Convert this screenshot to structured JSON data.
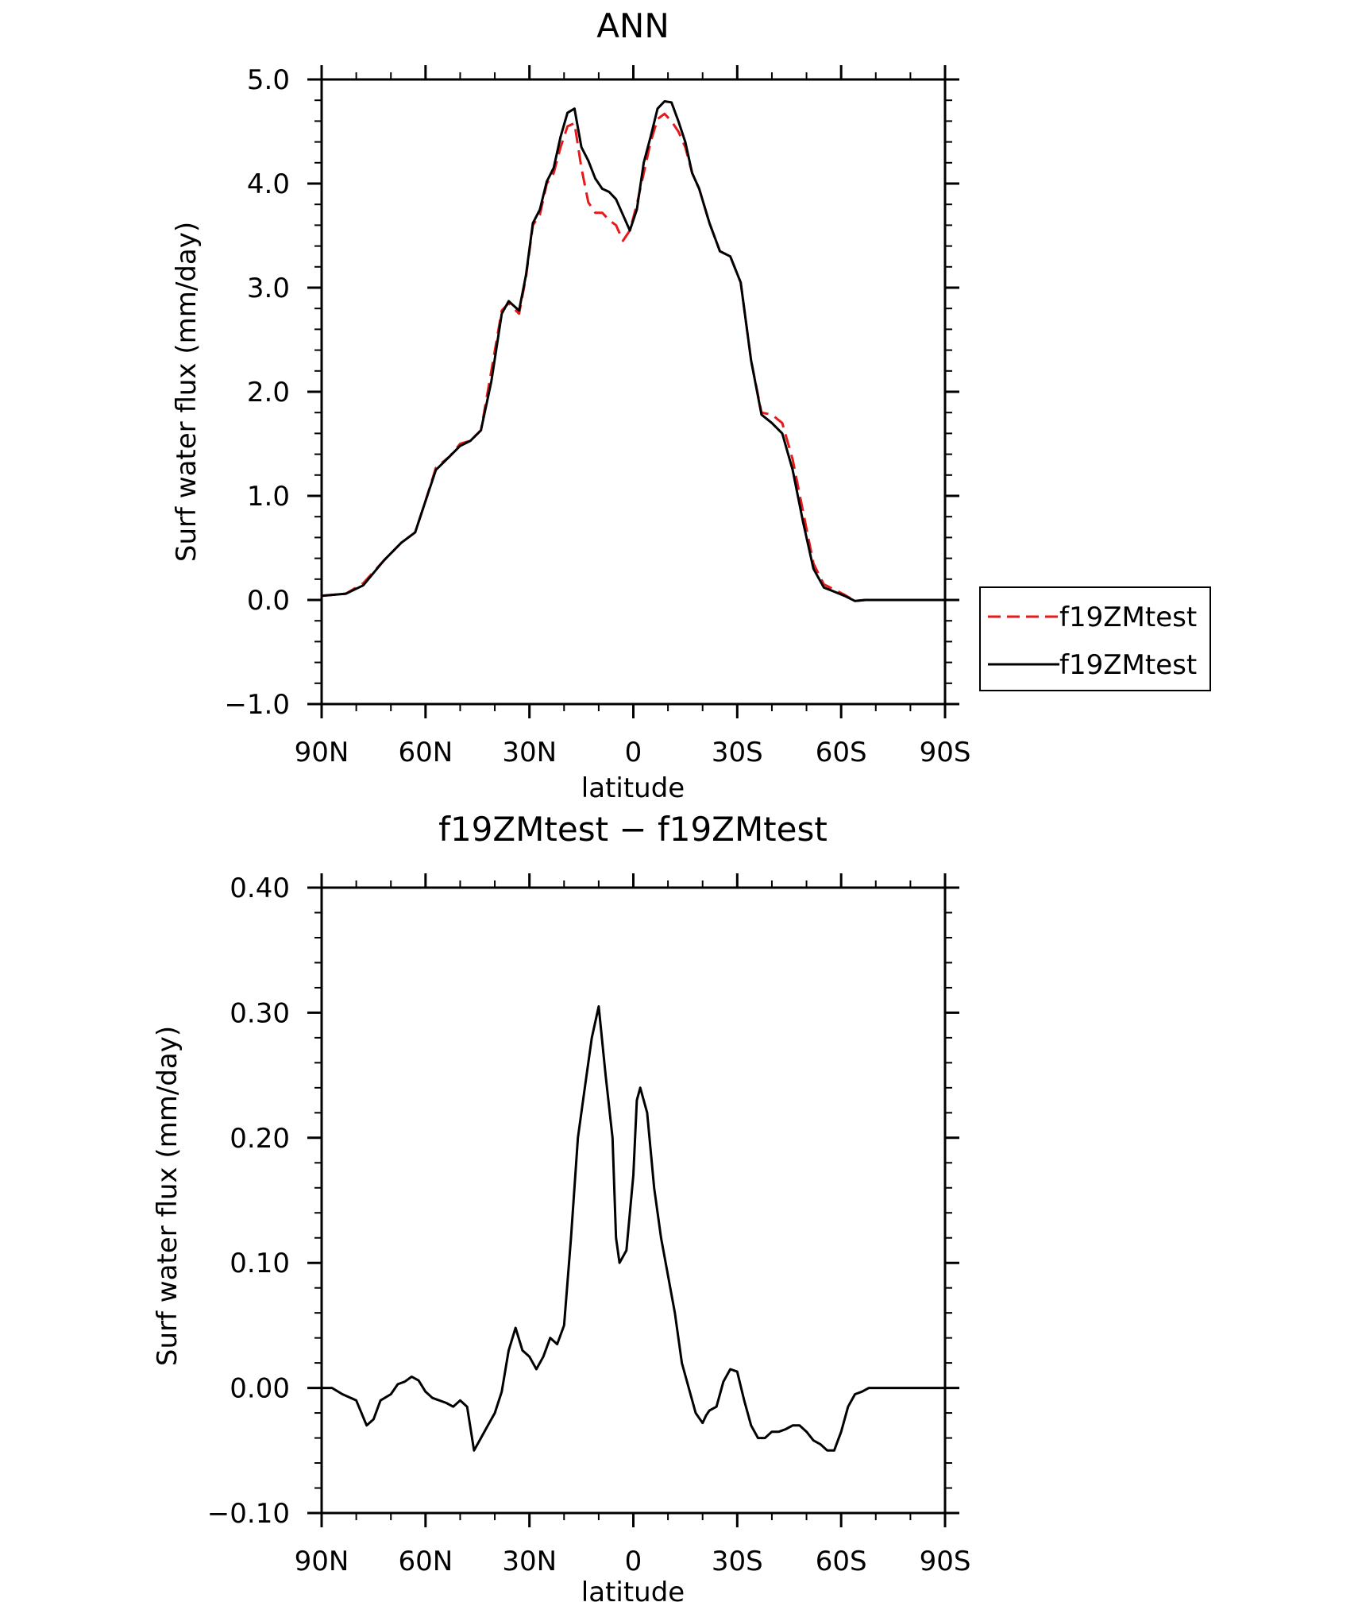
{
  "chart_data": [
    {
      "type": "line",
      "title": "ANN",
      "xlabel": "latitude",
      "ylabel": "Surf water flux (mm/day)",
      "xlim": [
        90,
        -90
      ],
      "ylim": [
        -1.0,
        5.0
      ],
      "yticks": [
        5.0,
        4.0,
        3.0,
        2.0,
        1.0,
        0.0,
        -1.0
      ],
      "ytick_labels": [
        "5.0",
        "4.0",
        "3.0",
        "2.0",
        "1.0",
        "0.0",
        "−1.0"
      ],
      "xticks": [
        90,
        60,
        30,
        0,
        -30,
        -60,
        -90
      ],
      "xtick_labels": [
        "90N",
        "60N",
        "30N",
        "0",
        "30S",
        "60S",
        "90S"
      ],
      "grid": false,
      "legend_position": "right",
      "series": [
        {
          "name": "f19ZMtest",
          "color": "#e8191a",
          "style": "dashed",
          "x": [
            90,
            83,
            78,
            72,
            67,
            63,
            60,
            57,
            53,
            50,
            47,
            44,
            41,
            38,
            36,
            33,
            31,
            29,
            27,
            25,
            23,
            21,
            19,
            17,
            15,
            13,
            11,
            9,
            7,
            5,
            3,
            1,
            -1,
            -3,
            -5,
            -7,
            -9,
            -11,
            -13,
            -15,
            -17,
            -19,
            -22,
            -25,
            -28,
            -31,
            -34,
            -37,
            -40,
            -43,
            -46,
            -49,
            -52,
            -55,
            -58,
            -61,
            -64,
            -67,
            -70,
            -73,
            -76,
            -79,
            -82,
            -85,
            -90
          ],
          "y": [
            0.04,
            0.06,
            0.16,
            0.38,
            0.55,
            0.65,
            0.95,
            1.27,
            1.38,
            1.5,
            1.53,
            1.63,
            2.2,
            2.78,
            2.85,
            2.75,
            3.1,
            3.6,
            3.7,
            4.0,
            4.1,
            4.35,
            4.55,
            4.58,
            4.15,
            3.82,
            3.72,
            3.72,
            3.65,
            3.6,
            3.45,
            3.55,
            3.8,
            4.1,
            4.4,
            4.62,
            4.67,
            4.6,
            4.5,
            4.35,
            4.1,
            3.95,
            3.62,
            3.35,
            3.3,
            3.05,
            2.3,
            1.8,
            1.78,
            1.7,
            1.35,
            0.85,
            0.35,
            0.15,
            0.1,
            0.05,
            -0.01,
            0.0,
            0.0,
            0.0,
            0.0,
            0.0,
            0.0,
            0.0,
            0.0
          ]
        },
        {
          "name": "f19ZMtest",
          "color": "#000000",
          "style": "solid",
          "x": [
            90,
            83,
            78,
            72,
            67,
            63,
            60,
            57,
            53,
            50,
            47,
            44,
            41,
            38,
            36,
            33,
            31,
            29,
            27,
            25,
            23,
            21,
            19,
            17,
            15,
            13,
            11,
            9,
            7,
            5,
            3,
            1,
            -1,
            -3,
            -5,
            -7,
            -9,
            -11,
            -13,
            -15,
            -17,
            -19,
            -22,
            -25,
            -28,
            -31,
            -34,
            -37,
            -40,
            -43,
            -46,
            -49,
            -52,
            -55,
            -58,
            -61,
            -64,
            -67,
            -70,
            -73,
            -76,
            -79,
            -82,
            -85,
            -90
          ],
          "y": [
            0.04,
            0.06,
            0.14,
            0.38,
            0.55,
            0.65,
            0.95,
            1.25,
            1.38,
            1.48,
            1.53,
            1.63,
            2.1,
            2.75,
            2.87,
            2.78,
            3.12,
            3.62,
            3.75,
            4.02,
            4.15,
            4.45,
            4.68,
            4.72,
            4.35,
            4.22,
            4.05,
            3.95,
            3.92,
            3.85,
            3.7,
            3.55,
            3.75,
            4.2,
            4.45,
            4.72,
            4.79,
            4.78,
            4.6,
            4.4,
            4.1,
            3.95,
            3.62,
            3.35,
            3.3,
            3.05,
            2.3,
            1.78,
            1.7,
            1.6,
            1.25,
            0.75,
            0.3,
            0.12,
            0.08,
            0.04,
            -0.01,
            0.0,
            0.0,
            0.0,
            0.0,
            0.0,
            0.0,
            0.0,
            0.0
          ]
        }
      ],
      "legend": [
        {
          "label": "f19ZMtest",
          "color": "#e8191a",
          "style": "dashed"
        },
        {
          "label": "f19ZMtest",
          "color": "#000000",
          "style": "solid"
        }
      ]
    },
    {
      "type": "line",
      "title": "f19ZMtest − f19ZMtest",
      "xlabel": "latitude",
      "ylabel": "Surf water flux (mm/day)",
      "xlim": [
        90,
        -90
      ],
      "ylim": [
        -0.1,
        0.4
      ],
      "yticks": [
        0.4,
        0.3,
        0.2,
        0.1,
        0.0,
        -0.1
      ],
      "ytick_labels": [
        "0.40",
        "0.30",
        "0.20",
        "0.10",
        "0.00",
        "−0.10"
      ],
      "xticks": [
        90,
        60,
        30,
        0,
        -30,
        -60,
        -90
      ],
      "xtick_labels": [
        "90N",
        "60N",
        "30N",
        "0",
        "30S",
        "60S",
        "90S"
      ],
      "grid": false,
      "series": [
        {
          "color": "#000000",
          "style": "solid",
          "x": [
            90,
            87,
            84,
            80,
            77,
            75,
            73,
            70,
            68,
            66,
            64,
            62,
            60,
            58,
            56,
            54,
            52,
            50,
            48,
            46,
            44,
            42,
            40,
            38,
            36,
            34,
            32,
            30,
            28,
            26,
            24,
            22,
            20,
            18,
            16,
            14,
            12,
            10,
            8,
            6,
            5,
            4,
            2,
            0,
            -1,
            -2,
            -4,
            -5,
            -6,
            -8,
            -10,
            -12,
            -14,
            -16,
            -18,
            -20,
            -21,
            -22,
            -24,
            -26,
            -28,
            -30,
            -32,
            -34,
            -36,
            -38,
            -40,
            -42,
            -44,
            -46,
            -48,
            -50,
            -52,
            -54,
            -56,
            -58,
            -60,
            -62,
            -64,
            -66,
            -68,
            -70,
            -72,
            -75,
            -80,
            -85,
            -90
          ],
          "y": [
            0.0,
            0.0,
            -0.005,
            -0.01,
            -0.03,
            -0.025,
            -0.01,
            -0.005,
            0.003,
            0.005,
            0.009,
            0.006,
            -0.003,
            -0.008,
            -0.01,
            -0.012,
            -0.015,
            -0.01,
            -0.015,
            -0.05,
            -0.04,
            -0.03,
            -0.02,
            -0.003,
            0.03,
            0.048,
            0.03,
            0.025,
            0.015,
            0.025,
            0.04,
            0.035,
            0.05,
            0.12,
            0.2,
            0.24,
            0.28,
            0.305,
            0.25,
            0.2,
            0.12,
            0.1,
            0.11,
            0.17,
            0.23,
            0.24,
            0.22,
            0.19,
            0.16,
            0.12,
            0.09,
            0.06,
            0.02,
            0.0,
            -0.02,
            -0.028,
            -0.022,
            -0.018,
            -0.015,
            0.005,
            0.015,
            0.013,
            -0.01,
            -0.03,
            -0.04,
            -0.04,
            -0.035,
            -0.035,
            -0.033,
            -0.03,
            -0.03,
            -0.035,
            -0.042,
            -0.045,
            -0.05,
            -0.05,
            -0.035,
            -0.015,
            -0.005,
            -0.003,
            0.0,
            0.0,
            0.0,
            0.0,
            0.0,
            0.0,
            0.0
          ]
        }
      ]
    }
  ]
}
